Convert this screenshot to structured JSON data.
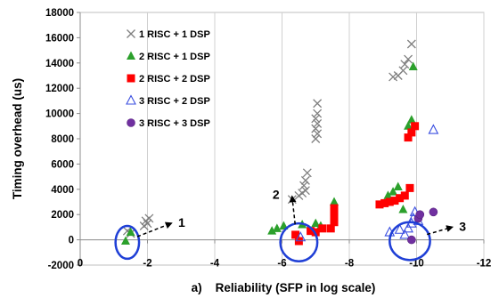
{
  "chart_data": {
    "type": "scatter",
    "xlabel": "a)    Reliability (SFP in log scale)",
    "ylabel": "Timing overhead (us)",
    "xlim": [
      0,
      -12
    ],
    "ylim": [
      -2000,
      18000
    ],
    "x_ticks": [
      "0",
      "-2",
      "-4",
      "-6",
      "-8",
      "-10",
      "-12"
    ],
    "y_ticks": [
      "-2000",
      "0",
      "2000",
      "4000",
      "6000",
      "8000",
      "10000",
      "12000",
      "14000",
      "16000",
      "18000"
    ],
    "grid": "vertical",
    "legend_position": "top-left (inside plot)",
    "series": [
      {
        "name": "1 RISC + 1 DSP",
        "marker": "x",
        "color": "#7f7f7f",
        "points": [
          [
            -1.4,
            700
          ],
          [
            -1.5,
            500
          ],
          [
            -1.9,
            1100
          ],
          [
            -2.0,
            1300
          ],
          [
            -1.95,
            1500
          ],
          [
            -2.05,
            1700
          ],
          [
            -6.3,
            3200
          ],
          [
            -6.5,
            3500
          ],
          [
            -6.6,
            3700
          ],
          [
            -6.7,
            3900
          ],
          [
            -6.65,
            4300
          ],
          [
            -6.7,
            4700
          ],
          [
            -6.75,
            5300
          ],
          [
            -7.0,
            8000
          ],
          [
            -7.05,
            8400
          ],
          [
            -7.0,
            8800
          ],
          [
            -7.05,
            9200
          ],
          [
            -7.0,
            9600
          ],
          [
            -7.05,
            10000
          ],
          [
            -7.05,
            10800
          ],
          [
            -9.3,
            12900
          ],
          [
            -9.45,
            13000
          ],
          [
            -9.6,
            13400
          ],
          [
            -9.65,
            13900
          ],
          [
            -9.75,
            14300
          ],
          [
            -9.85,
            15500
          ]
        ]
      },
      {
        "name": "2 RISC + 1 DSP",
        "marker": "triangle",
        "color": "#2ca02c",
        "points": [
          [
            -1.35,
            -100
          ],
          [
            -1.5,
            600
          ],
          [
            -5.7,
            700
          ],
          [
            -5.85,
            900
          ],
          [
            -6.05,
            1100
          ],
          [
            -6.6,
            1200
          ],
          [
            -7.0,
            1300
          ],
          [
            -7.15,
            1100
          ],
          [
            -7.55,
            3000
          ],
          [
            -9.15,
            3500
          ],
          [
            -9.3,
            3800
          ],
          [
            -9.45,
            4200
          ],
          [
            -9.6,
            2400
          ],
          [
            -9.75,
            9000
          ],
          [
            -9.85,
            9500
          ],
          [
            -9.9,
            13700
          ]
        ]
      },
      {
        "name": "2 RISC + 2 DSP",
        "marker": "square",
        "color": "#ff0000",
        "points": [
          [
            -6.4,
            400
          ],
          [
            -6.5,
            -100
          ],
          [
            -6.85,
            700
          ],
          [
            -7.0,
            600
          ],
          [
            -7.2,
            900
          ],
          [
            -7.45,
            900
          ],
          [
            -7.55,
            1400
          ],
          [
            -7.55,
            1800
          ],
          [
            -7.55,
            2200
          ],
          [
            -7.55,
            2500
          ],
          [
            -8.9,
            2800
          ],
          [
            -9.05,
            2900
          ],
          [
            -9.2,
            3000
          ],
          [
            -9.35,
            3100
          ],
          [
            -9.5,
            3300
          ],
          [
            -9.65,
            3500
          ],
          [
            -9.8,
            4100
          ],
          [
            -9.75,
            8100
          ],
          [
            -9.85,
            8500
          ],
          [
            -9.95,
            9000
          ]
        ]
      },
      {
        "name": "3 RISC + 2 DSP",
        "marker": "triangle-open",
        "color": "#3b4fe0",
        "points": [
          [
            -6.55,
            200
          ],
          [
            -9.2,
            600
          ],
          [
            -9.5,
            800
          ],
          [
            -9.65,
            400
          ],
          [
            -9.75,
            900
          ],
          [
            -9.85,
            1300
          ],
          [
            -9.9,
            1700
          ],
          [
            -9.95,
            2200
          ],
          [
            -10.05,
            1500
          ],
          [
            -10.5,
            8700
          ]
        ]
      },
      {
        "name": "3 RISC + 3 DSP",
        "marker": "circle",
        "color": "#7030a0",
        "points": [
          [
            -9.85,
            0
          ],
          [
            -10.05,
            1700
          ],
          [
            -10.1,
            2000
          ],
          [
            -10.5,
            2200
          ]
        ]
      }
    ],
    "annotations": [
      {
        "label": "1",
        "ellipse_center": [
          -1.4,
          -200
        ],
        "ellipse_half_size": [
          0.35,
          1300
        ],
        "arrow_to": [
          -2.7,
          1300
        ]
      },
      {
        "label": "2",
        "ellipse_center": [
          -6.5,
          -200
        ],
        "ellipse_half_size": [
          0.55,
          1500
        ],
        "arrow_from": [
          -6.3,
          3400
        ]
      },
      {
        "label": "3",
        "ellipse_center": [
          -9.8,
          -100
        ],
        "ellipse_half_size": [
          0.6,
          1500
        ],
        "arrow_to": [
          -11.05,
          1000
        ]
      }
    ]
  }
}
